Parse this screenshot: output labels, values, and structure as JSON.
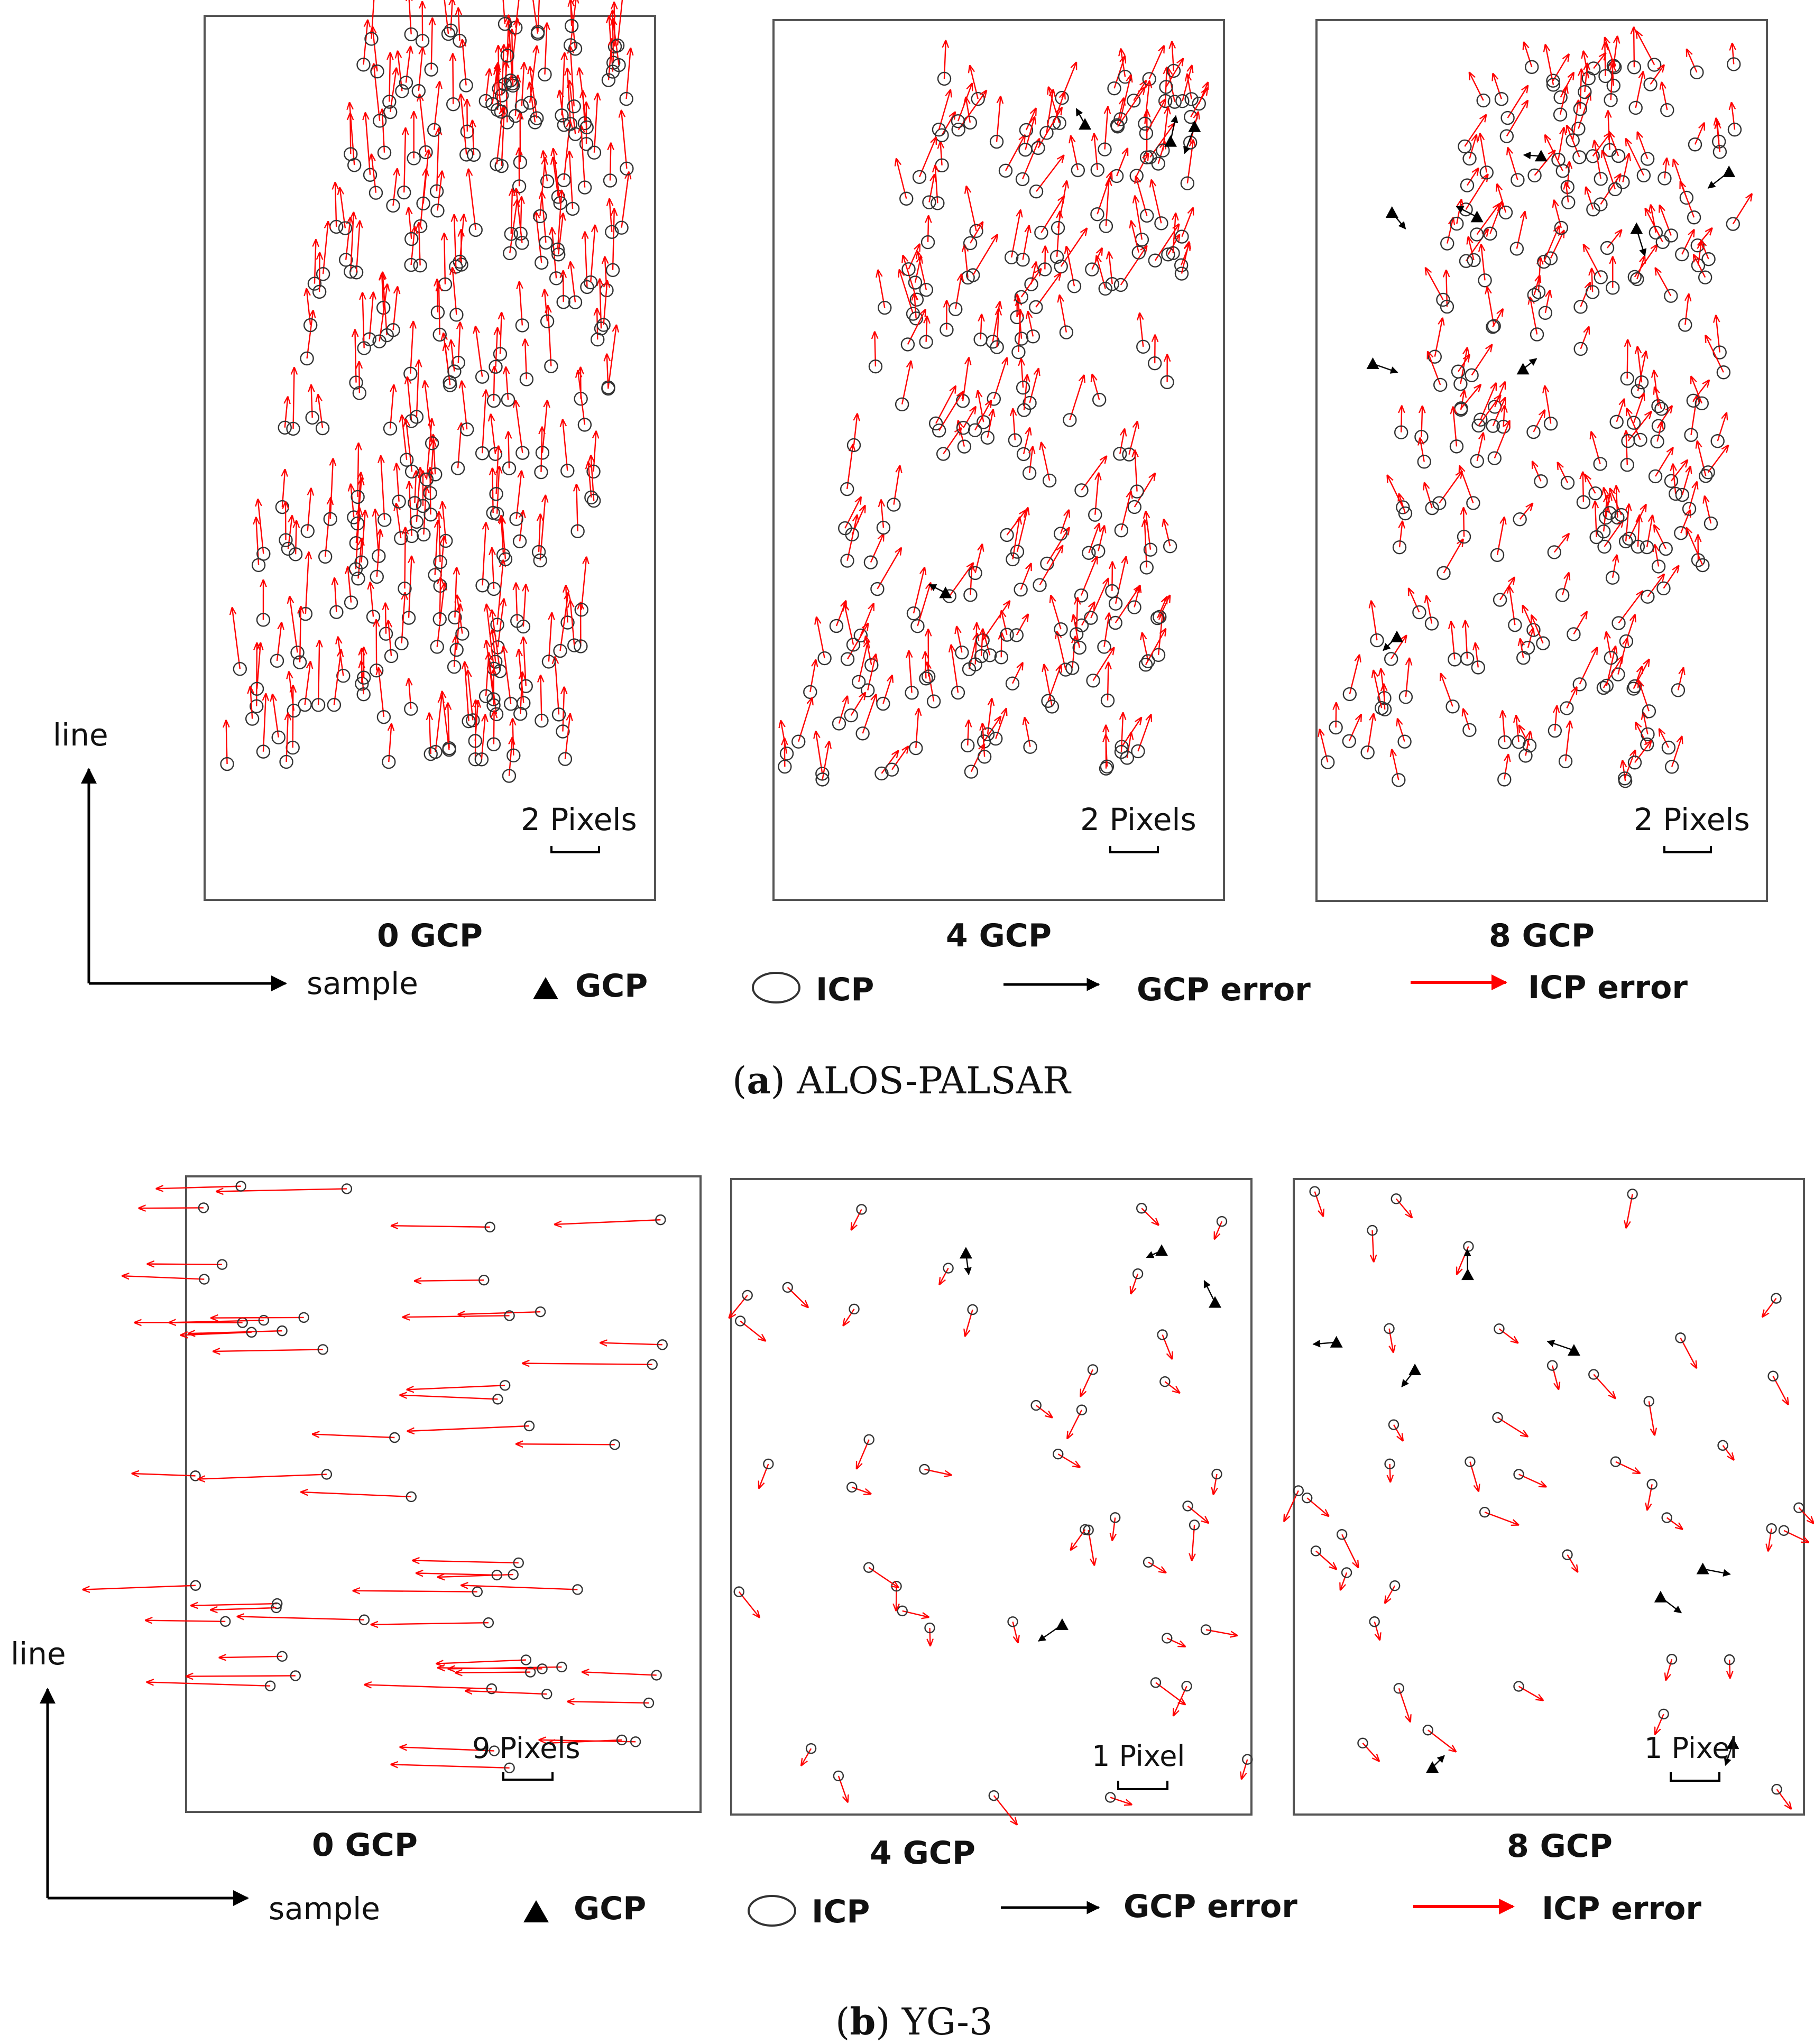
{
  "colors": {
    "icp_error": "#ff0000",
    "gcp_error": "#000000",
    "frame": "#555555",
    "text": "#111111"
  },
  "icons": {
    "gcp": "filled-triangle",
    "icp": "hollow-circle",
    "arrow": "line-with-arrowhead"
  },
  "sections": [
    {
      "id": "a",
      "caption_letter": "a",
      "caption_text": ") ALOS-PALSAR",
      "axis": {
        "line_label": "line",
        "sample_label": "sample"
      },
      "legend": {
        "gcp": "GCP",
        "icp": "ICP",
        "gcp_error": "GCP error",
        "icp_error": "ICP error"
      },
      "panels": [
        {
          "label": "0 GCP",
          "scale_label": "2 Pixels",
          "gcp_count": 0
        },
        {
          "label": "4 GCP",
          "scale_label": "2 Pixels",
          "gcp_count": 4
        },
        {
          "label": "8 GCP",
          "scale_label": "2 Pixels",
          "gcp_count": 8
        }
      ]
    },
    {
      "id": "b",
      "caption_letter": "b",
      "caption_text": ") YG-3",
      "axis": {
        "line_label": "line",
        "sample_label": "sample"
      },
      "legend": {
        "gcp": "GCP",
        "icp": "ICP",
        "gcp_error": "GCP error",
        "icp_error": "ICP error"
      },
      "panels": [
        {
          "label": "0 GCP",
          "scale_label": "9 Pixels",
          "gcp_count": 0
        },
        {
          "label": "4 GCP",
          "scale_label": "1 Pixel",
          "gcp_count": 4
        },
        {
          "label": "8 GCP",
          "scale_label": "1 Pixel",
          "gcp_count": 8
        }
      ]
    }
  ]
}
